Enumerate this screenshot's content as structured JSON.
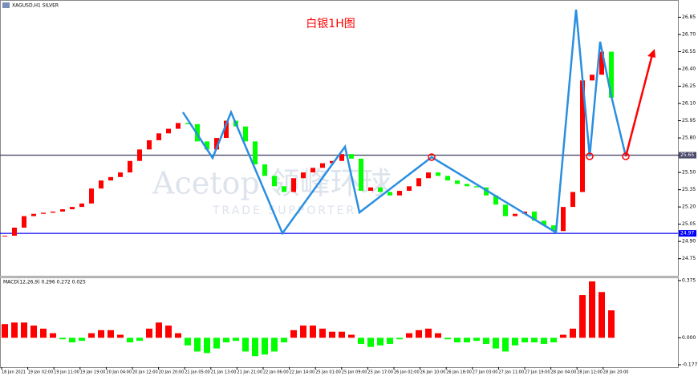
{
  "chart_data": {
    "type": "candlestick",
    "title": "白银1H图",
    "symbol": "XAGUSD,H1  SILVER",
    "watermark": [
      "Acetop 领峰环球",
      "TRADE SUPPORTER"
    ],
    "colors": {
      "up": "#ff0000",
      "down": "#00ff00"
    },
    "x_labels": [
      "18 Jan 2021",
      "19 Jan 02:00",
      "19 Jan 11:00",
      "19 Jan 19:00",
      "20 Jan 04:00",
      "20 Jan 12:00",
      "20 Jan 20:00",
      "21 Jan 05:00",
      "21 Jan 13:00",
      "21 Jan 21:00",
      "22 Jan 06:00",
      "22 Jan 14:00",
      "25 Jan 01:00",
      "25 Jan 09:00",
      "25 Jan 17:00",
      "26 Jan 02:00",
      "26 Jan 10:00",
      "26 Jan 18:00",
      "27 Jan 03:00",
      "27 Jan 11:00",
      "27 Jan 19:00",
      "28 Jan 04:00",
      "28 Jan 12:00",
      "28 Jan 20:00"
    ],
    "closes": [
      24.95,
      25.02,
      25.12,
      25.14,
      25.15,
      25.16,
      25.18,
      25.2,
      25.23,
      25.36,
      25.43,
      25.46,
      25.5,
      25.6,
      25.7,
      25.78,
      25.84,
      25.88,
      25.93,
      25.92,
      25.77,
      25.7,
      25.8,
      25.95,
      25.9,
      25.77,
      25.57,
      25.47,
      25.38,
      25.33,
      25.45,
      25.5,
      25.54,
      25.58,
      25.6,
      25.66,
      25.62,
      25.34,
      25.37,
      25.33,
      25.3,
      25.34,
      25.38,
      25.45,
      25.5,
      25.47,
      25.43,
      25.4,
      25.38,
      25.37,
      25.3,
      25.22,
      25.12,
      25.14,
      25.16,
      25.08,
      25.04,
      24.99,
      25.2,
      25.33,
      26.3,
      26.35,
      26.55,
      26.15
    ],
    "ylim": [
      24.65,
      26.93
    ],
    "yticks": [
      24.75,
      {
        "value": 24.9,
        "label": "24.90"
      },
      25.05,
      {
        "value": 25.2,
        "label": "25.20"
      },
      25.35,
      {
        "value": 25.5,
        "label": "25.50"
      },
      25.65,
      {
        "value": 25.8,
        "label": "25.80"
      },
      25.95,
      {
        "value": 26.1,
        "label": "26.10"
      },
      26.25,
      {
        "value": 26.4,
        "label": "26.40"
      },
      26.55,
      {
        "value": 26.7,
        "label": "26.70"
      },
      26.85
    ],
    "hlines": [
      {
        "value": 24.97,
        "color": "#0000ff"
      },
      {
        "value": 25.65,
        "color": "#4a4a6a"
      }
    ],
    "macd": {
      "label": "MACD(12,26,9) 0.296 0.272 0.025",
      "values": [
        0.09,
        0.1,
        0.1,
        0.08,
        0.06,
        0.03,
        -0.01,
        -0.03,
        -0.02,
        0.03,
        0.05,
        0.05,
        0.02,
        -0.03,
        -0.02,
        0.06,
        0.1,
        0.08,
        0.03,
        -0.05,
        -0.09,
        -0.1,
        -0.07,
        -0.03,
        -0.02,
        -0.09,
        -0.12,
        -0.11,
        -0.09,
        -0.03,
        0.05,
        0.08,
        0.08,
        0.06,
        0.04,
        0.04,
        0.02,
        -0.04,
        -0.06,
        -0.05,
        -0.04,
        -0.01,
        0.03,
        0.05,
        0.06,
        0.03,
        -0.01,
        -0.03,
        -0.03,
        -0.02,
        -0.04,
        -0.07,
        -0.09,
        -0.05,
        -0.03,
        -0.03,
        -0.04,
        -0.03,
        0.02,
        0.06,
        0.28,
        0.37,
        0.3,
        0.18
      ],
      "ylim": [
        -0.177,
        0.375
      ],
      "yticks": [
        0.375,
        {
          "value": 0,
          "label": "0.000"
        },
        -0.177
      ]
    }
  }
}
